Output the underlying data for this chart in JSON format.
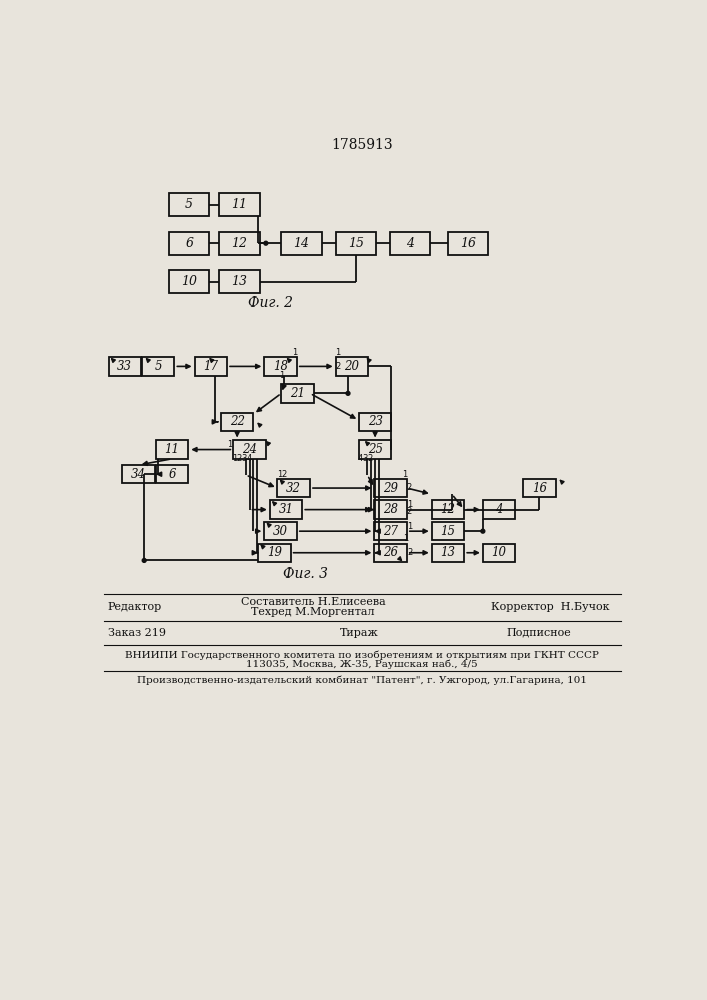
{
  "title": "1785913",
  "fig2_caption": "Фиг. 2",
  "fig3_caption": "Фиг. 3",
  "background_color": "#e8e4dc",
  "box_facecolor": "#e8e4dc",
  "line_color": "#111111",
  "text_color": "#111111",
  "footer_row1_left": "Редактор",
  "footer_row1_center1": "Составитель Н.Елисеева",
  "footer_row1_center2": "Техред М.Моргентал",
  "footer_row1_right": "Корректор  Н.Бучок",
  "footer_row2_left": "Заказ 219",
  "footer_row2_center": "Тираж",
  "footer_row2_right": "Подписное",
  "footer_row3": "ВНИИПИ Государственного комитета по изобретениям и открытиям при ГКНТ СССР",
  "footer_row3b": "113035, Москва, Ж-35, Раушская наб., 4/5",
  "footer_row4": "Производственно-издательский комбинат \"Патент\", г. Ужгород, ул.Гагарина, 101"
}
